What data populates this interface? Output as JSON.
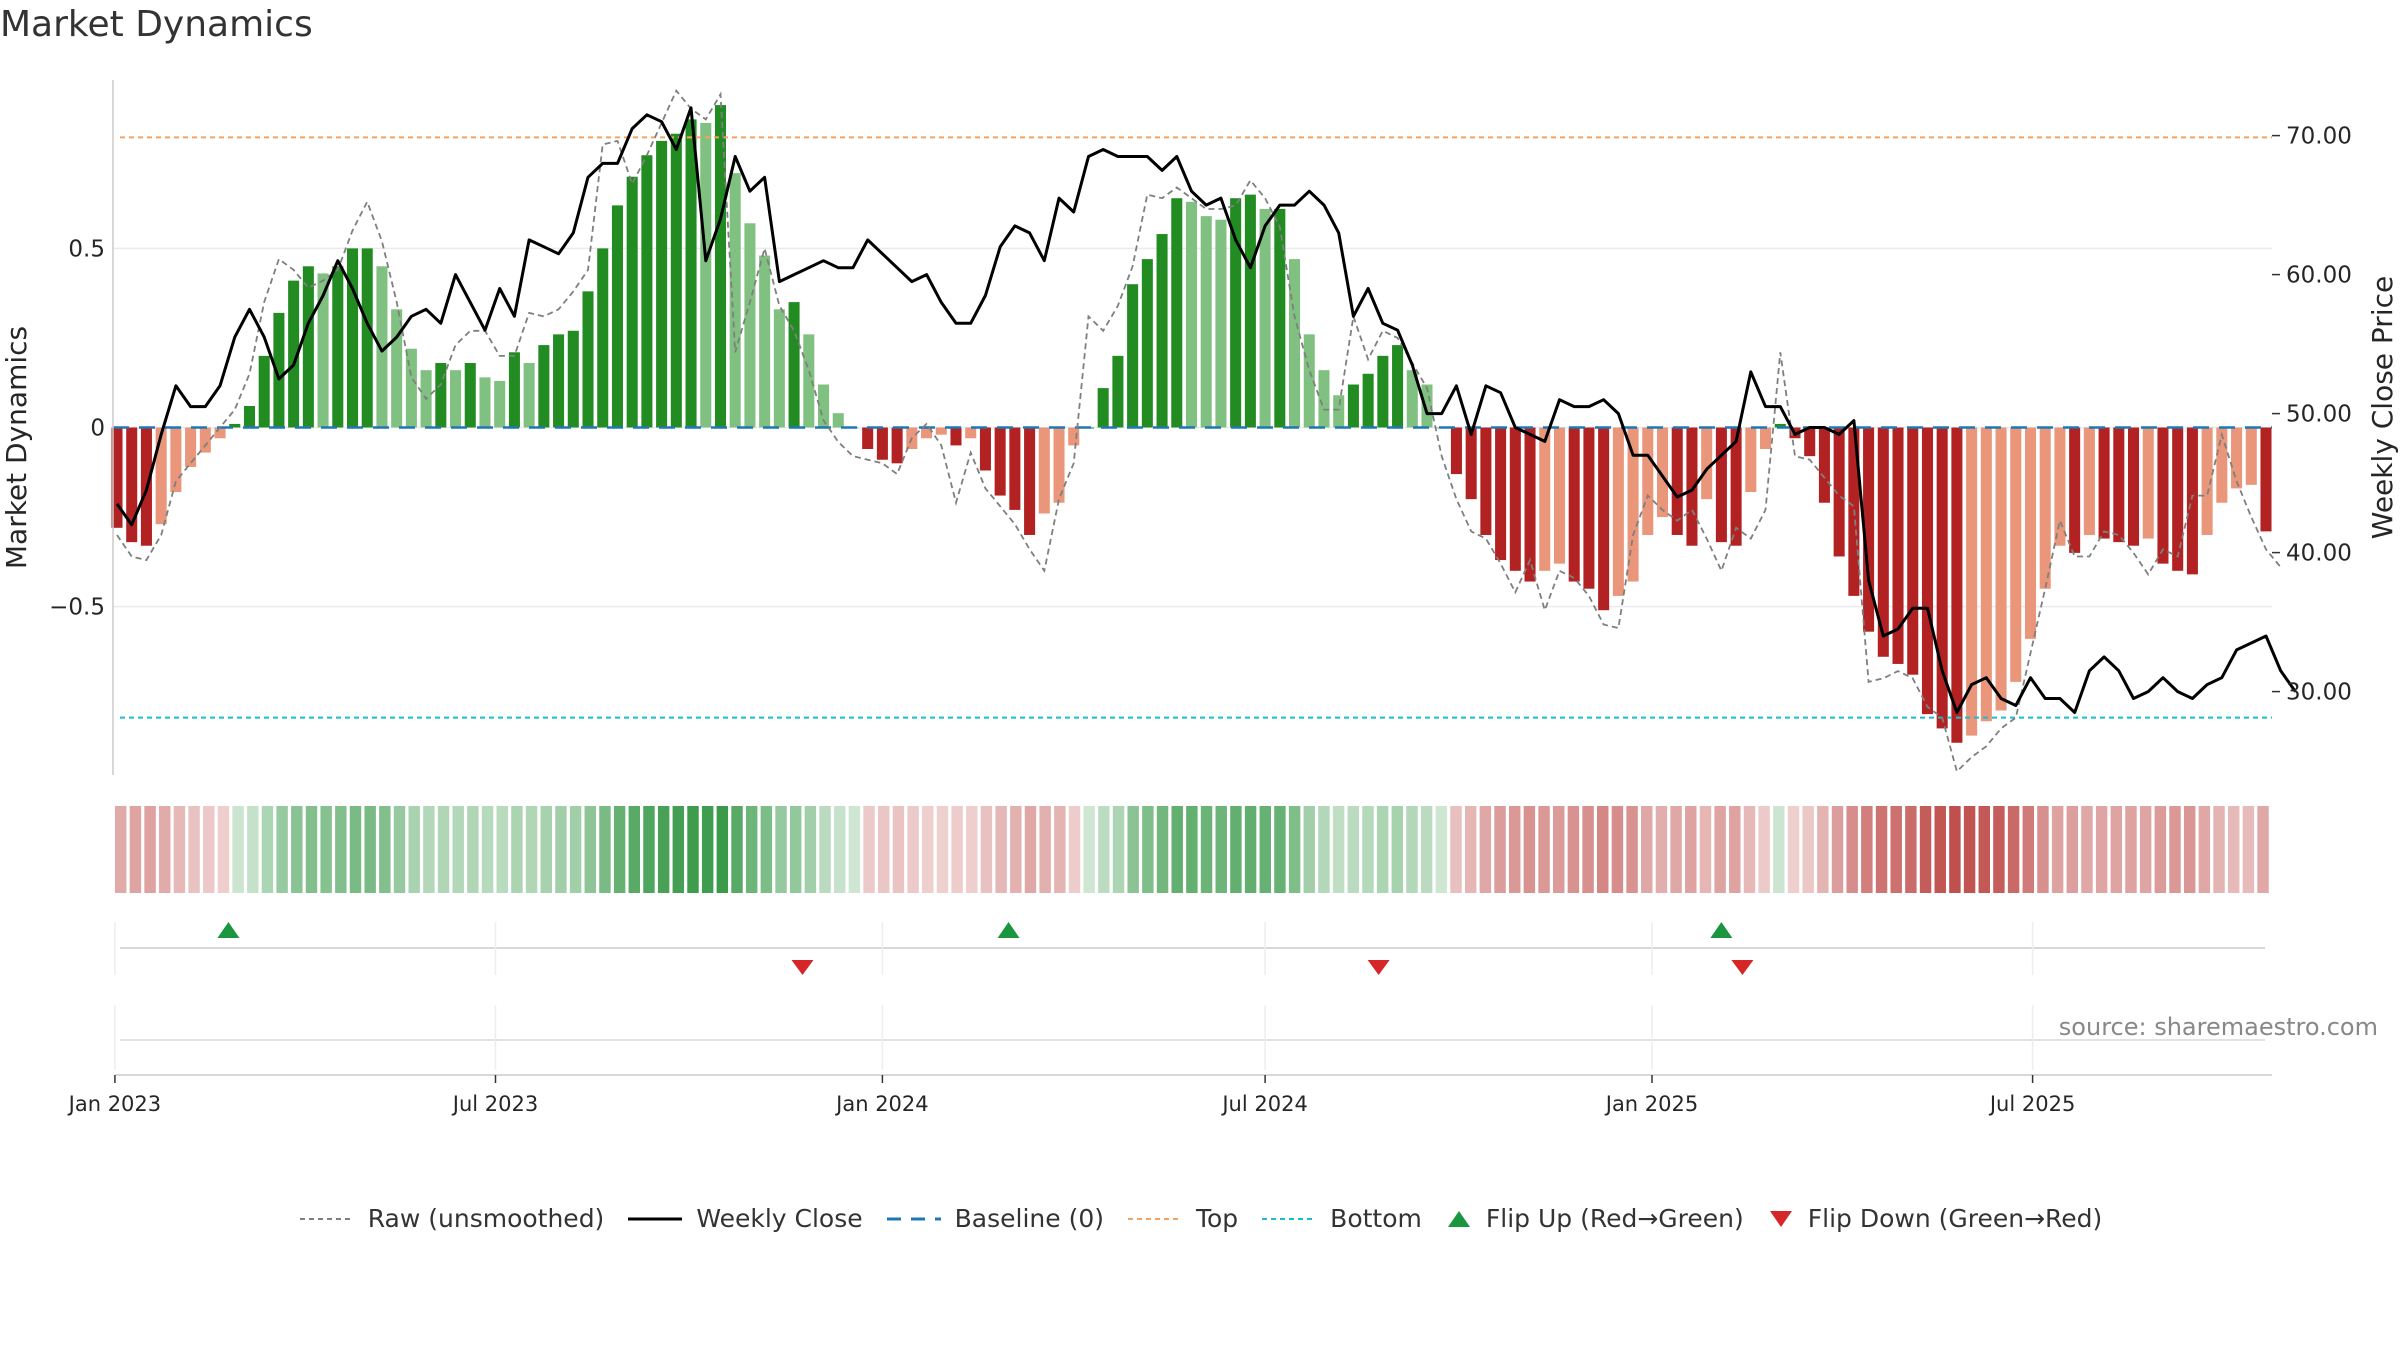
{
  "title": "Market Dynamics",
  "watermark": "source: sharemaestro.com",
  "chart_data": {
    "type": "bar",
    "start": "2023-01-02",
    "period_days": 7,
    "bars": [
      -0.28,
      -0.32,
      -0.33,
      -0.27,
      -0.18,
      -0.11,
      -0.07,
      -0.03,
      0.01,
      0.06,
      0.2,
      0.32,
      0.41,
      0.45,
      0.43,
      0.45,
      0.5,
      0.5,
      0.45,
      0.33,
      0.22,
      0.16,
      0.18,
      0.16,
      0.18,
      0.14,
      0.13,
      0.21,
      0.18,
      0.23,
      0.26,
      0.27,
      0.38,
      0.5,
      0.62,
      0.7,
      0.76,
      0.8,
      0.82,
      0.86,
      0.85,
      0.9,
      0.71,
      0.57,
      0.48,
      0.33,
      0.35,
      0.26,
      0.12,
      0.04,
      0.0,
      -0.06,
      -0.09,
      -0.1,
      -0.06,
      -0.03,
      -0.02,
      -0.05,
      -0.03,
      -0.12,
      -0.19,
      -0.23,
      -0.3,
      -0.24,
      -0.21,
      -0.05,
      0.0,
      0.11,
      0.2,
      0.4,
      0.47,
      0.54,
      0.64,
      0.63,
      0.59,
      0.58,
      0.64,
      0.65,
      0.61,
      0.61,
      0.47,
      0.26,
      0.16,
      0.09,
      0.12,
      0.15,
      0.2,
      0.23,
      0.16,
      0.12,
      0.0,
      -0.13,
      -0.2,
      -0.3,
      -0.37,
      -0.4,
      -0.43,
      -0.4,
      -0.38,
      -0.43,
      -0.45,
      -0.51,
      -0.47,
      -0.43,
      -0.3,
      -0.25,
      -0.3,
      -0.33,
      -0.2,
      -0.32,
      -0.33,
      -0.18,
      -0.06,
      0.01,
      -0.03,
      -0.08,
      -0.21,
      -0.36,
      -0.47,
      -0.57,
      -0.64,
      -0.66,
      -0.69,
      -0.8,
      -0.84,
      -0.88,
      -0.86,
      -0.82,
      -0.79,
      -0.71,
      -0.59,
      -0.45,
      -0.33,
      -0.35,
      -0.3,
      -0.31,
      -0.32,
      -0.33,
      -0.31,
      -0.38,
      -0.4,
      -0.41,
      -0.3,
      -0.21,
      -0.17,
      -0.16,
      -0.29
    ],
    "raw": [
      -0.3,
      -0.36,
      -0.37,
      -0.3,
      -0.15,
      -0.1,
      -0.05,
      0.0,
      0.05,
      0.15,
      0.35,
      0.47,
      0.44,
      0.39,
      0.41,
      0.44,
      0.55,
      0.63,
      0.52,
      0.35,
      0.14,
      0.08,
      0.12,
      0.23,
      0.27,
      0.27,
      0.2,
      0.2,
      0.32,
      0.31,
      0.33,
      0.38,
      0.44,
      0.79,
      0.8,
      0.68,
      0.76,
      0.85,
      0.94,
      0.89,
      0.86,
      0.93,
      0.21,
      0.35,
      0.5,
      0.34,
      0.27,
      0.16,
      0.02,
      -0.04,
      -0.08,
      -0.09,
      -0.1,
      -0.13,
      -0.03,
      0.01,
      -0.05,
      -0.21,
      -0.07,
      -0.17,
      -0.22,
      -0.27,
      -0.34,
      -0.4,
      -0.2,
      -0.1,
      0.31,
      0.27,
      0.34,
      0.45,
      0.65,
      0.64,
      0.67,
      0.64,
      0.61,
      0.61,
      0.62,
      0.69,
      0.64,
      0.56,
      0.31,
      0.16,
      0.05,
      0.05,
      0.31,
      0.19,
      0.27,
      0.25,
      0.18,
      0.11,
      -0.08,
      -0.2,
      -0.29,
      -0.31,
      -0.38,
      -0.46,
      -0.37,
      -0.51,
      -0.4,
      -0.42,
      -0.47,
      -0.55,
      -0.56,
      -0.3,
      -0.19,
      -0.23,
      -0.26,
      -0.23,
      -0.31,
      -0.4,
      -0.28,
      -0.31,
      -0.23,
      0.21,
      -0.08,
      -0.09,
      -0.14,
      -0.19,
      -0.22,
      -0.71,
      -0.7,
      -0.68,
      -0.7,
      -0.78,
      -0.81,
      -0.96,
      -0.92,
      -0.89,
      -0.84,
      -0.81,
      -0.63,
      -0.45,
      -0.26,
      -0.36,
      -0.36,
      -0.29,
      -0.3,
      -0.35,
      -0.41,
      -0.34,
      -0.36,
      -0.19,
      -0.19,
      -0.02,
      -0.15,
      -0.25,
      -0.34,
      -0.39
    ],
    "close": [
      43.5,
      42.0,
      44.5,
      48.5,
      52.0,
      50.5,
      50.5,
      52.0,
      55.5,
      57.5,
      55.5,
      52.5,
      53.5,
      56.5,
      58.5,
      61.0,
      59.0,
      56.5,
      54.5,
      55.5,
      57.0,
      57.5,
      56.5,
      60.0,
      58.0,
      56.0,
      59.0,
      57.0,
      62.5,
      62.0,
      61.5,
      63.0,
      67.0,
      68.0,
      68.0,
      70.5,
      71.5,
      71.0,
      69.0,
      72.0,
      61.0,
      64.0,
      68.5,
      66.0,
      67.0,
      59.5,
      60.0,
      60.5,
      61.0,
      60.5,
      60.5,
      62.5,
      61.5,
      60.5,
      59.5,
      60.0,
      58.0,
      56.5,
      56.5,
      58.5,
      62.0,
      63.5,
      63.0,
      61.0,
      65.5,
      64.5,
      68.5,
      69.0,
      68.5,
      68.5,
      68.5,
      67.5,
      68.5,
      66.0,
      65.0,
      65.5,
      62.5,
      60.5,
      63.5,
      65.0,
      65.0,
      66.0,
      65.0,
      63.0,
      57.0,
      59.0,
      56.5,
      56.0,
      53.5,
      50.0,
      50.0,
      52.0,
      48.5,
      52.0,
      51.5,
      49.0,
      48.5,
      48.0,
      51.0,
      50.5,
      50.5,
      51.0,
      50.0,
      47.0,
      47.0,
      45.5,
      44.0,
      44.5,
      46.0,
      47.0,
      48.0,
      53.0,
      50.5,
      50.5,
      48.5,
      49.0,
      49.0,
      48.5,
      49.5,
      38.0,
      34.0,
      34.5,
      36.0,
      36.0,
      31.5,
      28.5,
      30.5,
      31.0,
      29.5,
      29.0,
      31.0,
      29.5,
      29.5,
      28.5,
      31.5,
      32.5,
      31.5,
      29.5,
      30.0,
      31.0,
      30.0,
      29.5,
      30.5,
      31.0,
      33.0,
      33.5,
      34.0,
      31.5,
      30.0
    ],
    "y_left_ticks": [
      {
        "value": 0.5,
        "label": "0.5"
      },
      {
        "value": 0.0,
        "label": "0"
      },
      {
        "value": -0.5,
        "label": "−0.5"
      }
    ],
    "y_right_ticks": [
      {
        "value": 30,
        "label": "30.00"
      },
      {
        "value": 40,
        "label": "40.00"
      },
      {
        "value": 50,
        "label": "50.00"
      },
      {
        "value": 60,
        "label": "60.00"
      },
      {
        "value": 70,
        "label": "70.00"
      }
    ],
    "x_ticks": [
      {
        "date": "2023-01-01",
        "label": "Jan 2023"
      },
      {
        "date": "2023-07-01",
        "label": "Jul 2023"
      },
      {
        "date": "2024-01-01",
        "label": "Jan 2024"
      },
      {
        "date": "2024-07-01",
        "label": "Jul 2024"
      },
      {
        "date": "2025-01-01",
        "label": "Jan 2025"
      },
      {
        "date": "2025-07-01",
        "label": "Jul 2025"
      }
    ],
    "ylabel": "Market Dynamics",
    "ylabel_right": "Weekly Close Price",
    "ylim": [
      -0.97,
      0.97
    ],
    "ylim_right": [
      24.0,
      74.0
    ],
    "top_line": 0.81,
    "bottom_line": -0.81,
    "flip_up_dates": [
      "2023-02-24",
      "2024-03-01",
      "2025-02-03"
    ],
    "flip_down_dates": [
      "2023-11-24",
      "2024-08-24",
      "2025-02-13"
    ],
    "colors": {
      "green_dark": "#228b22",
      "green_light": "#80c080",
      "red_dark": "#b22222",
      "red_light": "#e9967a",
      "raw": "#7f7f7f",
      "close": "#000000",
      "baseline": "#1f77b4",
      "top": "#f4a460",
      "bottom": "#17becf",
      "flip_up": "#1a9641",
      "flip_down": "#d62728"
    }
  },
  "legend": [
    {
      "key": "raw",
      "label": "Raw (unsmoothed)"
    },
    {
      "key": "close",
      "label": "Weekly Close"
    },
    {
      "key": "baseline",
      "label": "Baseline (0)"
    },
    {
      "key": "top",
      "label": "Top"
    },
    {
      "key": "bottom",
      "label": "Bottom"
    },
    {
      "key": "flip_up",
      "label": "Flip Up (Red→Green)"
    },
    {
      "key": "flip_down",
      "label": "Flip Down (Green→Red)"
    }
  ]
}
